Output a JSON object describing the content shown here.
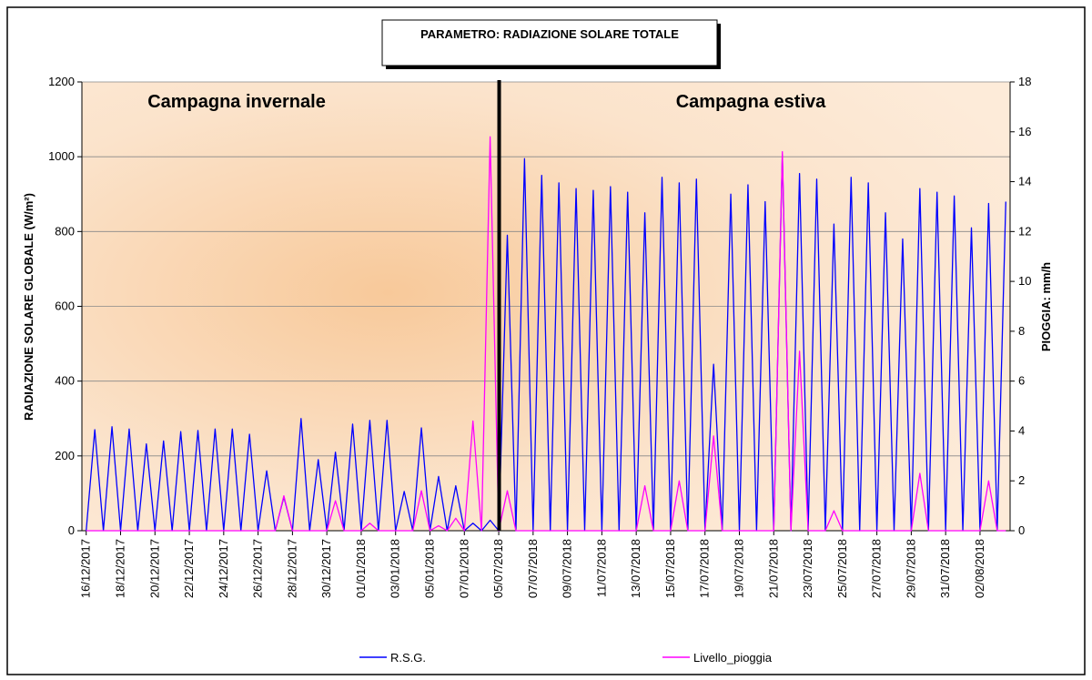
{
  "chart_data": {
    "type": "line",
    "title": "PARAMETRO: RADIAZIONE SOLARE TOTALE",
    "ylabel": "RADIAZIONE SOLARE GLOBALE (W/m²)",
    "y2label": "PIOGGIA: mm/h",
    "annotations": [
      {
        "text": "Campagna invernale",
        "color": "#2222ee"
      },
      {
        "text": "Campagna estiva",
        "color": "#ee1133"
      }
    ],
    "categories": [
      "16/12/2017",
      null,
      null,
      null,
      "18/12/2017",
      null,
      null,
      null,
      "20/12/2017",
      null,
      null,
      null,
      "22/12/2017",
      null,
      null,
      null,
      "24/12/2017",
      null,
      null,
      null,
      "26/12/2017",
      null,
      null,
      null,
      "28/12/2017",
      null,
      null,
      null,
      "30/12/2017",
      null,
      null,
      null,
      "01/01/2018",
      null,
      null,
      null,
      "03/01/2018",
      null,
      null,
      null,
      "05/01/2018",
      null,
      null,
      null,
      "07/01/2018",
      null,
      null,
      null,
      "05/07/2018",
      null,
      null,
      null,
      "07/07/2018",
      null,
      null,
      null,
      "09/07/2018",
      null,
      null,
      null,
      "11/07/2018",
      null,
      null,
      null,
      "13/07/2018",
      null,
      null,
      null,
      "15/07/2018",
      null,
      null,
      null,
      "17/07/2018",
      null,
      null,
      null,
      "19/07/2018",
      null,
      null,
      null,
      "21/07/2018",
      null,
      null,
      null,
      "23/07/2018",
      null,
      null,
      null,
      "25/07/2018",
      null,
      null,
      null,
      "27/07/2018",
      null,
      null,
      null,
      "29/07/2018",
      null,
      null,
      null,
      "31/07/2018",
      null,
      null,
      null,
      "02/08/2018",
      null,
      null,
      null
    ],
    "series": [
      {
        "name": "R.S.G.",
        "color": "#0000ff",
        "axis": "y",
        "values": [
          0,
          270,
          0,
          278,
          0,
          272,
          0,
          232,
          0,
          240,
          0,
          265,
          0,
          268,
          0,
          272,
          0,
          272,
          0,
          258,
          0,
          160,
          0,
          90,
          0,
          300,
          0,
          190,
          0,
          210,
          0,
          285,
          0,
          295,
          0,
          295,
          0,
          105,
          0,
          275,
          0,
          145,
          0,
          120,
          0,
          20,
          0,
          28,
          0,
          790,
          0,
          995,
          0,
          950,
          0,
          930,
          0,
          915,
          0,
          910,
          0,
          920,
          0,
          905,
          0,
          850,
          0,
          945,
          0,
          930,
          0,
          940,
          0,
          445,
          0,
          900,
          0,
          925,
          0,
          880,
          0,
          1005,
          0,
          955,
          0,
          940,
          0,
          820,
          0,
          945,
          0,
          930,
          0,
          850,
          0,
          780,
          0,
          915,
          0,
          905,
          0,
          895,
          0,
          810,
          0,
          875,
          0,
          880
        ]
      },
      {
        "name": "Livello_pioggia",
        "color": "#ff00ff",
        "axis": "y2",
        "values": [
          0,
          0,
          0,
          0,
          0,
          0,
          0,
          0,
          0,
          0,
          0,
          0,
          0,
          0,
          0,
          0,
          0,
          0,
          0,
          0,
          0,
          0,
          0,
          1.4,
          0,
          0,
          0,
          0,
          0,
          1.2,
          0,
          0,
          0,
          0.3,
          0,
          0,
          0,
          0,
          0,
          1.6,
          0,
          0.2,
          0,
          0.5,
          0,
          4.4,
          0,
          15.8,
          0,
          1.6,
          0,
          0,
          0,
          0,
          0,
          0,
          0,
          0,
          0,
          0,
          0,
          0,
          0,
          0,
          0,
          1.8,
          0,
          0,
          0,
          2.0,
          0,
          0,
          0,
          3.8,
          0,
          0,
          0,
          0,
          0,
          0,
          0,
          15.2,
          0,
          7.2,
          0,
          0,
          0,
          0.8,
          0,
          0,
          0,
          0,
          0,
          0,
          0,
          0,
          0,
          2.3,
          0,
          0,
          0,
          0,
          0,
          0,
          0,
          2.0,
          0,
          0
        ]
      }
    ],
    "ylim": [
      0,
      1200
    ],
    "yticks": [
      0,
      200,
      400,
      600,
      800,
      1000,
      1200
    ],
    "y2lim": [
      0,
      18
    ],
    "y2ticks": [
      0,
      2,
      4,
      6,
      8,
      10,
      12,
      14,
      16,
      18
    ],
    "grid": true,
    "legend": "bottom"
  }
}
